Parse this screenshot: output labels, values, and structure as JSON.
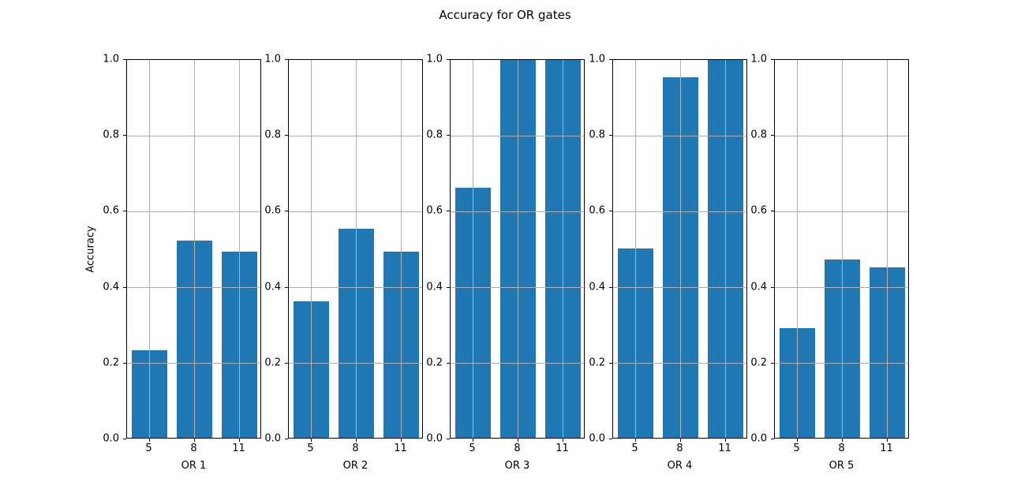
{
  "chart_data": [
    {
      "type": "bar",
      "title": "Accuracy for OR gates",
      "xlabel": "OR 1",
      "ylabel": "Accuracy",
      "categories": [
        "5",
        "8",
        "11"
      ],
      "values": [
        0.23,
        0.52,
        0.49
      ],
      "ylim": [
        0,
        1
      ],
      "yticks": [
        "0.0",
        "0.2",
        "0.4",
        "0.6",
        "0.8",
        "1.0"
      ],
      "grid": true,
      "color": "#1f77b4"
    },
    {
      "type": "bar",
      "xlabel": "OR 2",
      "categories": [
        "5",
        "8",
        "11"
      ],
      "values": [
        0.36,
        0.55,
        0.49
      ],
      "ylim": [
        0,
        1
      ],
      "yticks": [
        "0.0",
        "0.2",
        "0.4",
        "0.6",
        "0.8",
        "1.0"
      ],
      "grid": true,
      "color": "#1f77b4"
    },
    {
      "type": "bar",
      "xlabel": "OR 3",
      "categories": [
        "5",
        "8",
        "11"
      ],
      "values": [
        0.66,
        1.0,
        1.0
      ],
      "ylim": [
        0,
        1
      ],
      "yticks": [
        "0.0",
        "0.2",
        "0.4",
        "0.6",
        "0.8",
        "1.0"
      ],
      "grid": true,
      "color": "#1f77b4"
    },
    {
      "type": "bar",
      "xlabel": "OR 4",
      "categories": [
        "5",
        "8",
        "11"
      ],
      "values": [
        0.5,
        0.95,
        1.0
      ],
      "ylim": [
        0,
        1
      ],
      "yticks": [
        "0.0",
        "0.2",
        "0.4",
        "0.6",
        "0.8",
        "1.0"
      ],
      "grid": true,
      "color": "#1f77b4"
    },
    {
      "type": "bar",
      "xlabel": "OR 5",
      "categories": [
        "5",
        "8",
        "11"
      ],
      "values": [
        0.29,
        0.47,
        0.45
      ],
      "ylim": [
        0,
        1
      ],
      "yticks": [
        "0.0",
        "0.2",
        "0.4",
        "0.6",
        "0.8",
        "1.0"
      ],
      "grid": true,
      "color": "#1f77b4"
    }
  ],
  "figure": {
    "title": "Accuracy for OR gates",
    "ylabel": "Accuracy",
    "panel_lefts": [
      160,
      365,
      570,
      776,
      981
    ]
  }
}
